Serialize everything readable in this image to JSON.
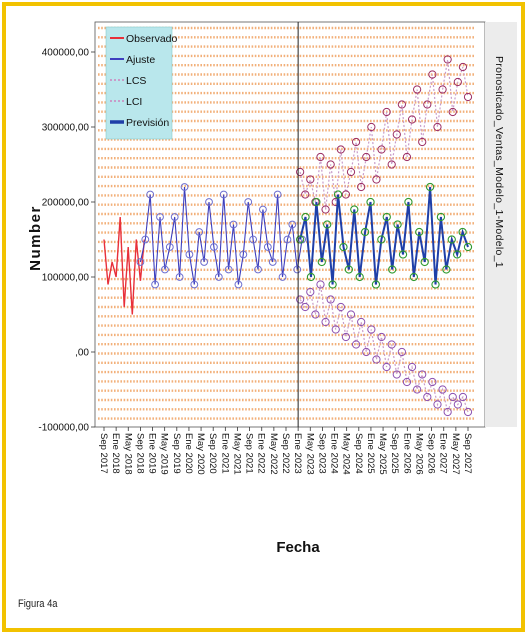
{
  "figure_caption": "Figura 4a",
  "chart_data": {
    "type": "line",
    "xlabel": "Fecha",
    "ylabel": "Number",
    "right_label": "Pronosticado_Ventas_Modelo_1-Modelo_1",
    "ylim": [
      -100000,
      440000
    ],
    "yticks": [
      "-100000,00",
      ",00",
      "100000,00",
      "200000,00",
      "300000,00",
      "400000,00"
    ],
    "xticks": [
      "Sep 2017",
      "Ene 2018",
      "May 2018",
      "Sep 2018",
      "Ene 2019",
      "May 2019",
      "Sep 2019",
      "Ene 2020",
      "May 2020",
      "Sep 2020",
      "Ene 2021",
      "May 2021",
      "Sep 2021",
      "Ene 2022",
      "May 2022",
      "Sep 2022",
      "Ene 2023",
      "May 2023",
      "Sep 2023",
      "Ene 2024",
      "May 2024",
      "Sep 2024",
      "Ene 2025",
      "May 2025",
      "Sep 2025",
      "Ene 2026",
      "May 2026",
      "Sep 2026",
      "Ene 2027",
      "May 2027",
      "Sep 2027"
    ],
    "forecast_start": "Ene 2023",
    "legend": [
      "Observado",
      "Ajuste",
      "LCS",
      "LCI",
      "Previsión"
    ],
    "colors": {
      "observado": "#e8303a",
      "ajuste": "#3d3fbf",
      "lcs": "#c89bc9",
      "lci": "#c89bc9",
      "prevision": "#1f3fa8",
      "plot_bg": "#ffffff",
      "band": "#f2b07a",
      "legend_bg": "#b9e7ec",
      "frame": "#f2c200"
    },
    "series": [
      {
        "name": "Observado",
        "values": [
          150000,
          90000,
          120000,
          100000,
          180000,
          60000,
          140000,
          50000,
          150000,
          95000,
          150000
        ]
      },
      {
        "name": "Ajuste",
        "values": [
          120000,
          150000,
          210000,
          90000,
          180000,
          110000,
          140000,
          180000,
          100000,
          220000,
          130000,
          90000,
          160000,
          120000,
          200000,
          140000,
          100000,
          210000,
          110000,
          170000,
          90000,
          130000,
          200000,
          150000,
          110000,
          190000,
          140000,
          120000,
          210000,
          100000,
          150000,
          170000,
          110000,
          150000
        ]
      },
      {
        "name": "LCS",
        "values": [
          240000,
          210000,
          230000,
          200000,
          260000,
          190000,
          250000,
          200000,
          270000,
          210000,
          240000,
          280000,
          220000,
          260000,
          300000,
          230000,
          270000,
          320000,
          250000,
          290000,
          330000,
          260000,
          310000,
          350000,
          280000,
          330000,
          370000,
          300000,
          350000,
          390000,
          320000,
          360000,
          380000,
          340000
        ]
      },
      {
        "name": "LCI",
        "values": [
          70000,
          60000,
          80000,
          50000,
          90000,
          40000,
          70000,
          30000,
          60000,
          20000,
          50000,
          10000,
          40000,
          0,
          30000,
          -10000,
          20000,
          -20000,
          10000,
          -30000,
          0,
          -40000,
          -20000,
          -50000,
          -30000,
          -60000,
          -40000,
          -70000,
          -50000,
          -80000,
          -60000,
          -70000,
          -60000,
          -80000
        ]
      },
      {
        "name": "Previsión",
        "values": [
          150000,
          180000,
          100000,
          200000,
          120000,
          170000,
          90000,
          210000,
          140000,
          110000,
          190000,
          100000,
          160000,
          200000,
          90000,
          150000,
          180000,
          110000,
          170000,
          130000,
          200000,
          100000,
          160000,
          120000,
          220000,
          90000,
          180000,
          110000,
          150000,
          130000,
          160000,
          140000
        ]
      }
    ]
  }
}
